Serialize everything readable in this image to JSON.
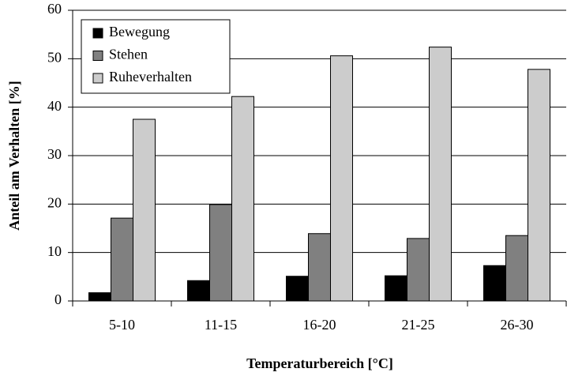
{
  "chart_data": {
    "type": "bar",
    "xlabel": "Temperaturbereich [°C]",
    "ylabel": "Anteil am Verhalten [%]",
    "categories": [
      "5-10",
      "11-15",
      "16-20",
      "21-25",
      "26-30"
    ],
    "series": [
      {
        "name": "Bewegung",
        "color": "#000000",
        "values": [
          1.7,
          4.2,
          5.1,
          5.2,
          7.3
        ]
      },
      {
        "name": "Stehen",
        "color": "#808080",
        "values": [
          17.1,
          19.9,
          13.9,
          12.9,
          13.5
        ]
      },
      {
        "name": "Ruheverhalten",
        "color": "#cccccc",
        "values": [
          37.5,
          42.2,
          50.6,
          52.4,
          47.8
        ]
      }
    ],
    "ylim": [
      0,
      60
    ],
    "yticks": [
      0,
      10,
      20,
      30,
      40,
      50,
      60
    ],
    "grid": true,
    "legend": "upper-left"
  }
}
